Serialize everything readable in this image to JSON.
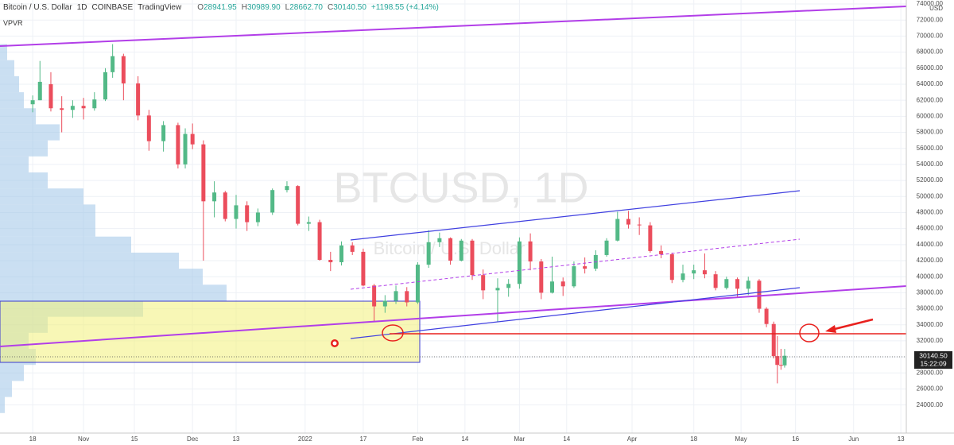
{
  "header": {
    "symbol": "Bitcoin / U.S. Dollar",
    "interval": "1D",
    "exchange": "COINBASE",
    "source": "TradingView",
    "ohlc": [
      {
        "key": "O",
        "value": "28941.95"
      },
      {
        "key": "H",
        "value": "30989.90"
      },
      {
        "key": "L",
        "value": "28662.70"
      },
      {
        "key": "C",
        "value": "30140.50"
      }
    ],
    "change": "+1198.55 (+4.14%)",
    "indicator": "VPVR"
  },
  "chart_data": {
    "type": "candlestick",
    "watermark": "BTCUSD, 1D",
    "watermark_sub": "Bitcoin / U.S. Dollar",
    "currency": "USD",
    "last_price_label": "30140.50",
    "countdown": "15:22:09",
    "up_color": "#53b987",
    "down_color": "#eb4d5c",
    "x": [
      0,
      2,
      5,
      8,
      11,
      14,
      17,
      20,
      22,
      25,
      29,
      32,
      36,
      40,
      42,
      44,
      47,
      50,
      53,
      56,
      59,
      62,
      66,
      70,
      73,
      76,
      79,
      82,
      85,
      88,
      91,
      94,
      97,
      100,
      103,
      106,
      109,
      112,
      115,
      118,
      121,
      124,
      128,
      131,
      134,
      137,
      140,
      143,
      146,
      149,
      152,
      155,
      158,
      161,
      164,
      167,
      170,
      173,
      176,
      179,
      182,
      185,
      188,
      191,
      194,
      197,
      200,
      202,
      204,
      205,
      206,
      207
    ],
    "open": [
      61500,
      62000,
      64000,
      61000,
      60800,
      61300,
      61000,
      62100,
      65500,
      67500,
      64100,
      60100,
      56900,
      58900,
      54000,
      57800,
      56500,
      49400,
      50500,
      47200,
      48900,
      46800,
      48000,
      50800,
      51300,
      46600,
      46800,
      42100,
      41800,
      43900,
      43100,
      38900,
      36300,
      37000,
      38200,
      36800,
      41500,
      44300,
      44800,
      42000,
      44500,
      40200,
      38300,
      38600,
      39100,
      44400,
      41900,
      38000,
      39400,
      38800,
      41300,
      41000,
      42700,
      44500,
      47200,
      46500,
      46400,
      43200,
      42800,
      39600,
      40400,
      40800,
      40300,
      38600,
      39700,
      38500,
      39500,
      36000,
      34100,
      30100,
      29000,
      28941.95
    ],
    "high": [
      62600,
      66900,
      65500,
      62500,
      62000,
      62300,
      63000,
      66000,
      69000,
      67800,
      65000,
      60800,
      59400,
      59200,
      58500,
      59100,
      57000,
      51900,
      50700,
      50200,
      49400,
      48500,
      51000,
      51900,
      51400,
      47500,
      47100,
      43100,
      44400,
      44300,
      43500,
      39100,
      37700,
      38900,
      38700,
      41800,
      45800,
      45500,
      44900,
      44700,
      44700,
      40900,
      39800,
      39700,
      44900,
      45400,
      42200,
      42500,
      39900,
      41900,
      42400,
      43300,
      44800,
      48100,
      48200,
      47400,
      46800,
      43900,
      43000,
      41500,
      41500,
      42900,
      40700,
      40000,
      39900,
      40000,
      39700,
      36200,
      34400,
      32600,
      31000,
      30989.9
    ],
    "low": [
      60500,
      62000,
      60600,
      58000,
      59800,
      59600,
      60700,
      61900,
      64800,
      62000,
      59500,
      55700,
      55600,
      53500,
      53500,
      55900,
      42000,
      47400,
      46900,
      46000,
      45700,
      46300,
      47700,
      50500,
      46400,
      45700,
      42000,
      40700,
      41400,
      42700,
      38800,
      34400,
      35500,
      36600,
      36300,
      36600,
      41100,
      43700,
      41500,
      41900,
      39600,
      37200,
      34400,
      37500,
      38500,
      40800,
      37200,
      37900,
      37600,
      38600,
      40400,
      40700,
      42500,
      44400,
      46000,
      45200,
      43000,
      42300,
      39200,
      39300,
      39700,
      39800,
      38300,
      38400,
      37500,
      37700,
      35500,
      33700,
      29800,
      26700,
      28400,
      28662.7
    ],
    "close": [
      62000,
      64300,
      61000,
      60800,
      61300,
      61000,
      62100,
      65500,
      67500,
      64100,
      60100,
      56900,
      58900,
      54000,
      57800,
      56500,
      49400,
      50500,
      47200,
      48900,
      46800,
      48000,
      50800,
      51300,
      46600,
      46800,
      42100,
      41800,
      43900,
      43100,
      38900,
      36300,
      37000,
      38200,
      36800,
      41500,
      44300,
      44800,
      42000,
      44500,
      40200,
      38300,
      38600,
      39100,
      44400,
      41900,
      38000,
      39400,
      38800,
      41300,
      41000,
      42700,
      44500,
      47200,
      46500,
      46400,
      43200,
      42800,
      39600,
      40400,
      40800,
      40300,
      38600,
      39700,
      38500,
      39500,
      36000,
      34100,
      30100,
      29000,
      28941.95,
      30140.5
    ],
    "volume_profile": {
      "levels": [
        24000,
        26000,
        28000,
        30000,
        32000,
        34000,
        36000,
        38000,
        40000,
        42000,
        44000,
        46000,
        48000,
        50000,
        52000,
        54000,
        56000,
        58000,
        60000,
        62000,
        64000,
        66000,
        68000
      ],
      "volumes": [
        2,
        5,
        10,
        15,
        12,
        20,
        60,
        95,
        85,
        75,
        55,
        40,
        40,
        35,
        20,
        12,
        20,
        25,
        15,
        10,
        8,
        6,
        3
      ]
    },
    "xlim": [
      -9,
      240.5
    ],
    "ylim": [
      20500,
      74500
    ],
    "xticks": [
      {
        "value": 0,
        "label": "18"
      },
      {
        "value": 14,
        "label": "Nov"
      },
      {
        "value": 28,
        "label": "15"
      },
      {
        "value": 44,
        "label": "Dec"
      },
      {
        "value": 56,
        "label": "13"
      },
      {
        "value": 75,
        "label": "2022"
      },
      {
        "value": 91,
        "label": "17"
      },
      {
        "value": 106,
        "label": "Feb"
      },
      {
        "value": 119,
        "label": "14"
      },
      {
        "value": 134,
        "label": "Mar"
      },
      {
        "value": 147,
        "label": "14"
      },
      {
        "value": 165,
        "label": "Apr"
      },
      {
        "value": 182,
        "label": "18"
      },
      {
        "value": 195,
        "label": "May"
      },
      {
        "value": 210,
        "label": "16"
      },
      {
        "value": 226,
        "label": "Jun"
      },
      {
        "value": 239,
        "label": "13"
      }
    ],
    "yticks": [
      {
        "value": 24000,
        "label": "24000.00"
      },
      {
        "value": 26000,
        "label": "26000.00"
      },
      {
        "value": 28000,
        "label": "28000.00"
      },
      {
        "value": 30000,
        "label": "30000.00"
      },
      {
        "value": 32000,
        "label": "32000.00"
      },
      {
        "value": 34000,
        "label": "34000.00"
      },
      {
        "value": 36000,
        "label": "36000.00"
      },
      {
        "value": 38000,
        "label": "38000.00"
      },
      {
        "value": 40000,
        "label": "40000.00"
      },
      {
        "value": 42000,
        "label": "42000.00"
      },
      {
        "value": 44000,
        "label": "44000.00"
      },
      {
        "value": 46000,
        "label": "46000.00"
      },
      {
        "value": 48000,
        "label": "48000.00"
      },
      {
        "value": 50000,
        "label": "50000.00"
      },
      {
        "value": 52000,
        "label": "52000.00"
      },
      {
        "value": 54000,
        "label": "54000.00"
      },
      {
        "value": 56000,
        "label": "56000.00"
      },
      {
        "value": 58000,
        "label": "58000.00"
      },
      {
        "value": 60000,
        "label": "60000.00"
      },
      {
        "value": 62000,
        "label": "62000.00"
      },
      {
        "value": 64000,
        "label": "64000.00"
      },
      {
        "value": 66000,
        "label": "66000.00"
      },
      {
        "value": 68000,
        "label": "68000.00"
      },
      {
        "value": 70000,
        "label": "70000.00"
      },
      {
        "value": 72000,
        "label": "72000.00"
      },
      {
        "value": 74000,
        "label": "74000.00"
      }
    ],
    "grid": true
  }
}
